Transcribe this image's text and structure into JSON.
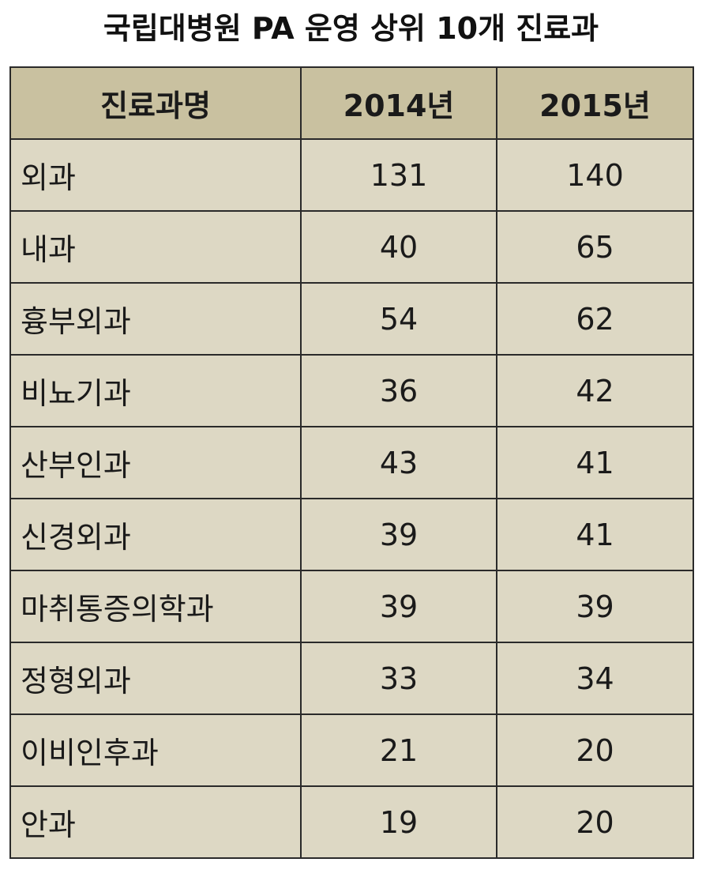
{
  "chart_data": {
    "type": "table",
    "title": "국립대병원 PA 운영 상위 10개 진료과",
    "columns": [
      "진료과명",
      "2014년",
      "2015년"
    ],
    "rows": [
      {
        "dept": "외과",
        "y2014": 131,
        "y2015": 140
      },
      {
        "dept": "내과",
        "y2014": 40,
        "y2015": 65
      },
      {
        "dept": "흉부외과",
        "y2014": 54,
        "y2015": 62
      },
      {
        "dept": "비뇨기과",
        "y2014": 36,
        "y2015": 42
      },
      {
        "dept": "산부인과",
        "y2014": 43,
        "y2015": 41
      },
      {
        "dept": "신경외과",
        "y2014": 39,
        "y2015": 41
      },
      {
        "dept": "마취통증의학과",
        "y2014": 39,
        "y2015": 39
      },
      {
        "dept": "정형외과",
        "y2014": 33,
        "y2015": 34
      },
      {
        "dept": "이비인후과",
        "y2014": 21,
        "y2015": 20
      },
      {
        "dept": "안과",
        "y2014": 19,
        "y2015": 20
      }
    ]
  },
  "colors": {
    "header_bg": "#c9c1a0",
    "cell_bg": "#ddd8c4",
    "border": "#2a2a2a"
  }
}
